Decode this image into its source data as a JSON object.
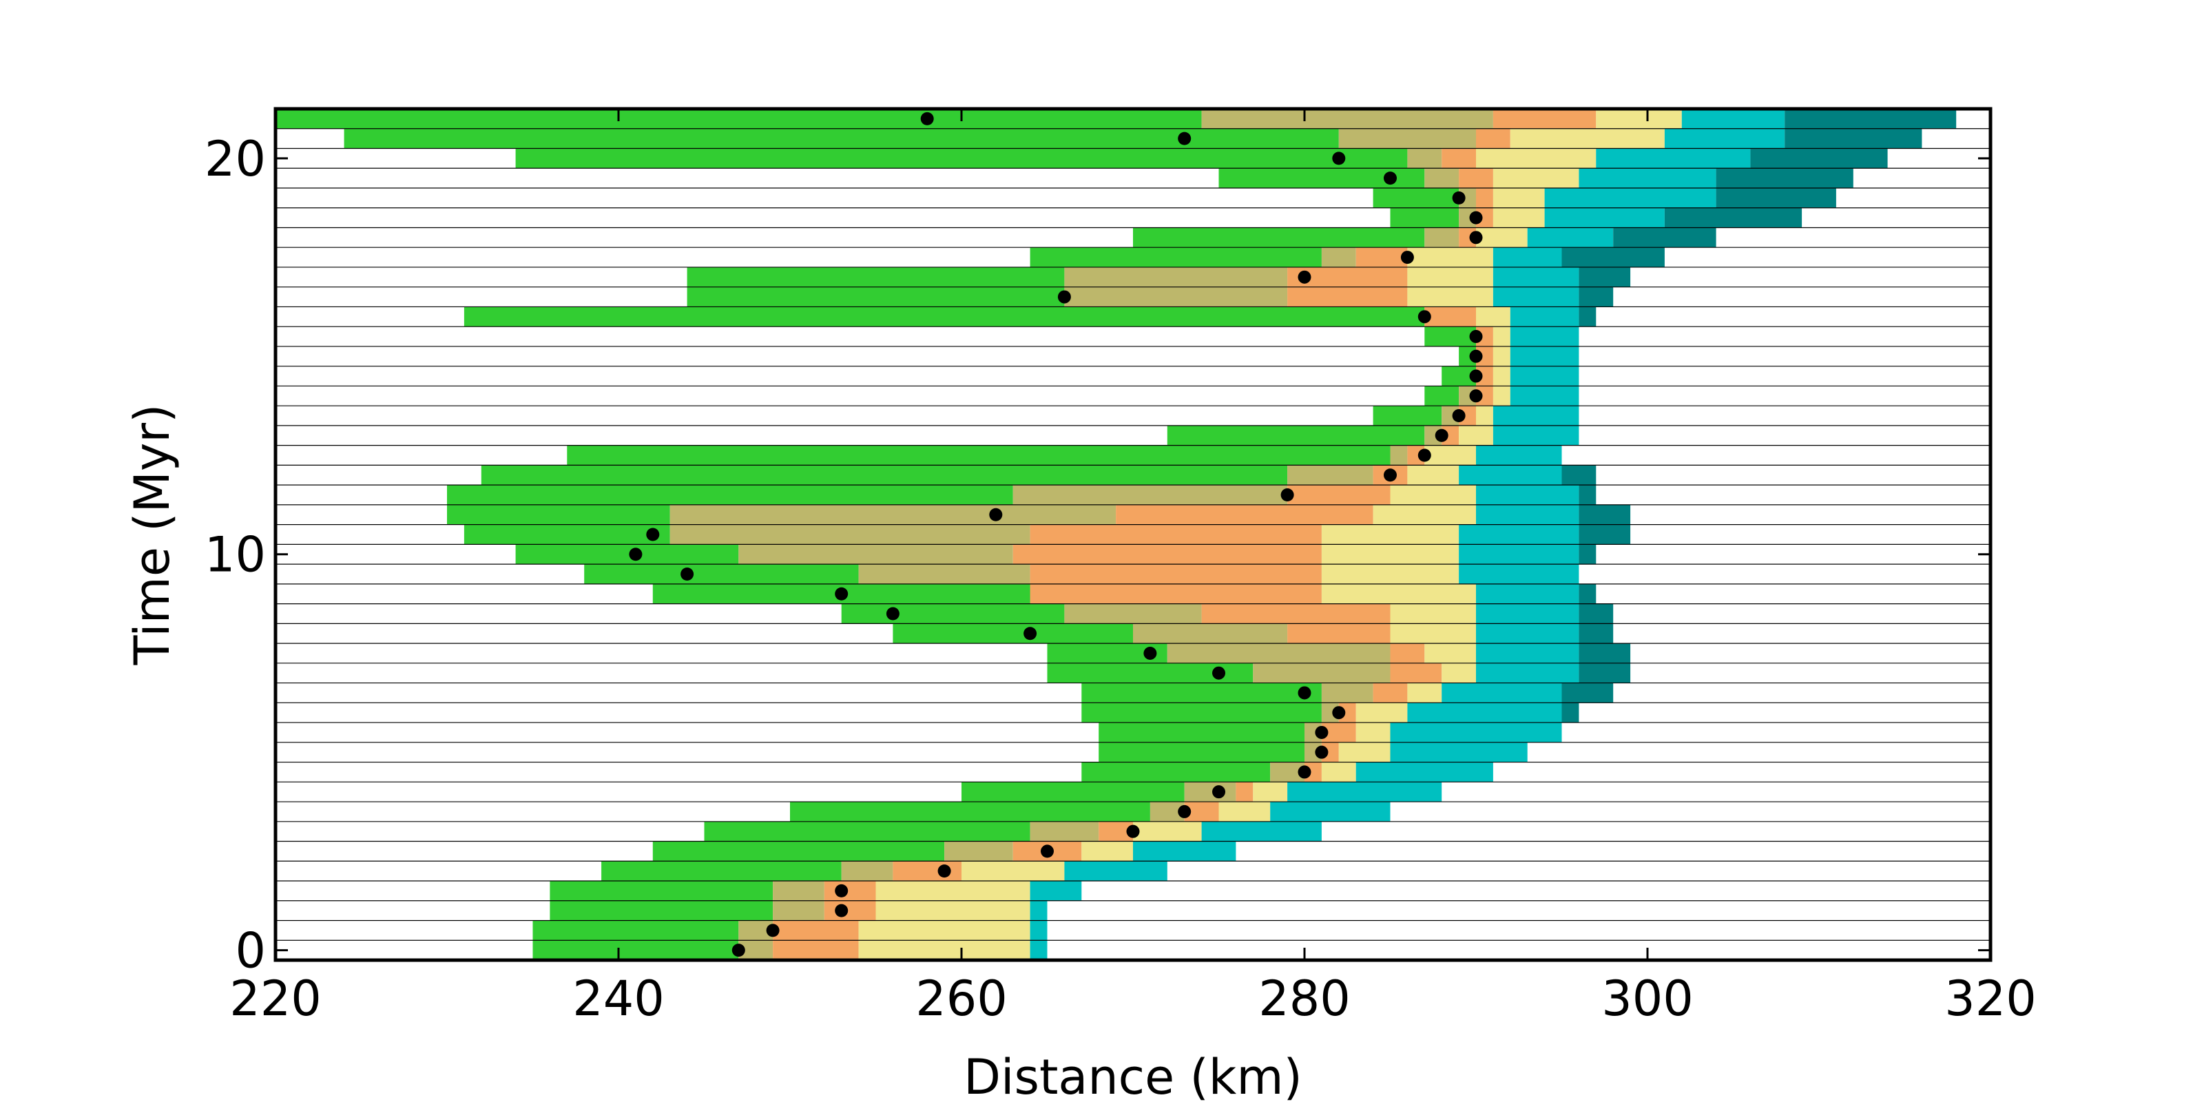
{
  "chart_data": {
    "type": "bar",
    "subtype": "stacked horizontal facies bars with shoreline markers",
    "title": "",
    "xlabel": "Distance (km)",
    "ylabel": "Time (Myr)",
    "xlim": [
      220,
      320
    ],
    "ylim": [
      0,
      20
    ],
    "x_ticks": [
      220,
      240,
      260,
      280,
      300,
      320
    ],
    "y_ticks": [
      0,
      10,
      20
    ],
    "row_step": 0.5,
    "grid": "horizontal line between each time row",
    "legend": "none",
    "series": [
      {
        "color": "#32cd32"
      },
      {
        "color": "#bdb76b"
      },
      {
        "color": "#f4a460"
      },
      {
        "color": "#f0e68c"
      },
      {
        "color": "#00c0c0"
      },
      {
        "color": "#008080"
      }
    ],
    "rows": [
      {
        "t": 0.0,
        "b": [
          235,
          247,
          249,
          254,
          264,
          265,
          265
        ],
        "m": 247
      },
      {
        "t": 0.5,
        "b": [
          235,
          247,
          249,
          254,
          264,
          265,
          265
        ],
        "m": 249
      },
      {
        "t": 1.0,
        "b": [
          236,
          249,
          252,
          255,
          264,
          265,
          265
        ],
        "m": 253
      },
      {
        "t": 1.5,
        "b": [
          236,
          249,
          252,
          255,
          264,
          267,
          267
        ],
        "m": 253
      },
      {
        "t": 2.0,
        "b": [
          239,
          253,
          256,
          260,
          266,
          272,
          272
        ],
        "m": 259
      },
      {
        "t": 2.5,
        "b": [
          242,
          259,
          263,
          267,
          270,
          276,
          276
        ],
        "m": 265
      },
      {
        "t": 3.0,
        "b": [
          245,
          264,
          268,
          270,
          274,
          281,
          281
        ],
        "m": 270
      },
      {
        "t": 3.5,
        "b": [
          250,
          271,
          273,
          275,
          278,
          285,
          285
        ],
        "m": 273
      },
      {
        "t": 4.0,
        "b": [
          260,
          273,
          276,
          277,
          279,
          288,
          288
        ],
        "m": 275
      },
      {
        "t": 4.5,
        "b": [
          267,
          278,
          280,
          281,
          283,
          291,
          291
        ],
        "m": 280
      },
      {
        "t": 5.0,
        "b": [
          268,
          280,
          281,
          282,
          285,
          293,
          293
        ],
        "m": 281
      },
      {
        "t": 5.5,
        "b": [
          268,
          280,
          281,
          283,
          285,
          295,
          295
        ],
        "m": 281
      },
      {
        "t": 6.0,
        "b": [
          267,
          281,
          282,
          283,
          286,
          295,
          296
        ],
        "m": 282
      },
      {
        "t": 6.5,
        "b": [
          267,
          281,
          284,
          286,
          288,
          295,
          298
        ],
        "m": 280
      },
      {
        "t": 7.0,
        "b": [
          265,
          277,
          285,
          288,
          290,
          296,
          299
        ],
        "m": 275
      },
      {
        "t": 7.5,
        "b": [
          265,
          272,
          285,
          287,
          290,
          296,
          299
        ],
        "m": 271
      },
      {
        "t": 8.0,
        "b": [
          256,
          270,
          279,
          285,
          290,
          296,
          298
        ],
        "m": 264
      },
      {
        "t": 8.5,
        "b": [
          253,
          266,
          274,
          285,
          290,
          296,
          298
        ],
        "m": 256
      },
      {
        "t": 9.0,
        "b": [
          242,
          265,
          264,
          281,
          290,
          296,
          297
        ],
        "m": 253
      },
      {
        "t": 9.5,
        "b": [
          238,
          254,
          264,
          281,
          289,
          296,
          296
        ],
        "m": 244
      },
      {
        "t": 10.0,
        "b": [
          234,
          247,
          263,
          281,
          289,
          296,
          297
        ],
        "m": 241
      },
      {
        "t": 10.5,
        "b": [
          231,
          243,
          264,
          281,
          289,
          296,
          299
        ],
        "m": 242
      },
      {
        "t": 11.0,
        "b": [
          230,
          243,
          269,
          284,
          290,
          296,
          299
        ],
        "m": 262
      },
      {
        "t": 11.5,
        "b": [
          230,
          263,
          279,
          285,
          290,
          296,
          297
        ],
        "m": 279
      },
      {
        "t": 12.0,
        "b": [
          232,
          279,
          284,
          286,
          289,
          295,
          297
        ],
        "m": 285
      },
      {
        "t": 12.5,
        "b": [
          237,
          285,
          286,
          287,
          290,
          295,
          295
        ],
        "m": 287
      },
      {
        "t": 13.0,
        "b": [
          272,
          287,
          288,
          289,
          291,
          296,
          296
        ],
        "m": 288
      },
      {
        "t": 13.5,
        "b": [
          284,
          288,
          289,
          290,
          291,
          296,
          296
        ],
        "m": 289
      },
      {
        "t": 14.0,
        "b": [
          287,
          289,
          290,
          291,
          292,
          296,
          296
        ],
        "m": 290
      },
      {
        "t": 14.5,
        "b": [
          288,
          290,
          290,
          291,
          292,
          296,
          296
        ],
        "m": 290
      },
      {
        "t": 15.0,
        "b": [
          289,
          290,
          290,
          291,
          292,
          296,
          296
        ],
        "m": 290
      },
      {
        "t": 15.5,
        "b": [
          287,
          290,
          290,
          291,
          292,
          296,
          296
        ],
        "m": 290
      },
      {
        "t": 16.0,
        "b": [
          231,
          287,
          287,
          290,
          292,
          296,
          297
        ],
        "m": 287
      },
      {
        "t": 16.5,
        "b": [
          244,
          266,
          279,
          286,
          291,
          296,
          298
        ],
        "m": 266
      },
      {
        "t": 17.0,
        "b": [
          244,
          266,
          279,
          286,
          291,
          296,
          299
        ],
        "m": 280
      },
      {
        "t": 17.5,
        "b": [
          264,
          281,
          283,
          286,
          291,
          295,
          301
        ],
        "m": 286
      },
      {
        "t": 18.0,
        "b": [
          270,
          287,
          289,
          290,
          293,
          298,
          304
        ],
        "m": 290
      },
      {
        "t": 18.5,
        "b": [
          285,
          289,
          290,
          291,
          294,
          301,
          309
        ],
        "m": 290
      },
      {
        "t": 19.0,
        "b": [
          284,
          289,
          290,
          291,
          294,
          304,
          311
        ],
        "m": 289
      },
      {
        "t": 19.5,
        "b": [
          275,
          287,
          289,
          291,
          296,
          304,
          312
        ],
        "m": 285
      },
      {
        "t": 20.0,
        "b": [
          234,
          286,
          288,
          290,
          297,
          306,
          314
        ],
        "m": 282
      },
      {
        "t": 20.5,
        "b": [
          224,
          282,
          290,
          292,
          301,
          308,
          316
        ],
        "m": 273
      },
      {
        "t": 21.0,
        "b": [
          220,
          274,
          291,
          297,
          302,
          308,
          318
        ],
        "m": 258
      }
    ]
  }
}
